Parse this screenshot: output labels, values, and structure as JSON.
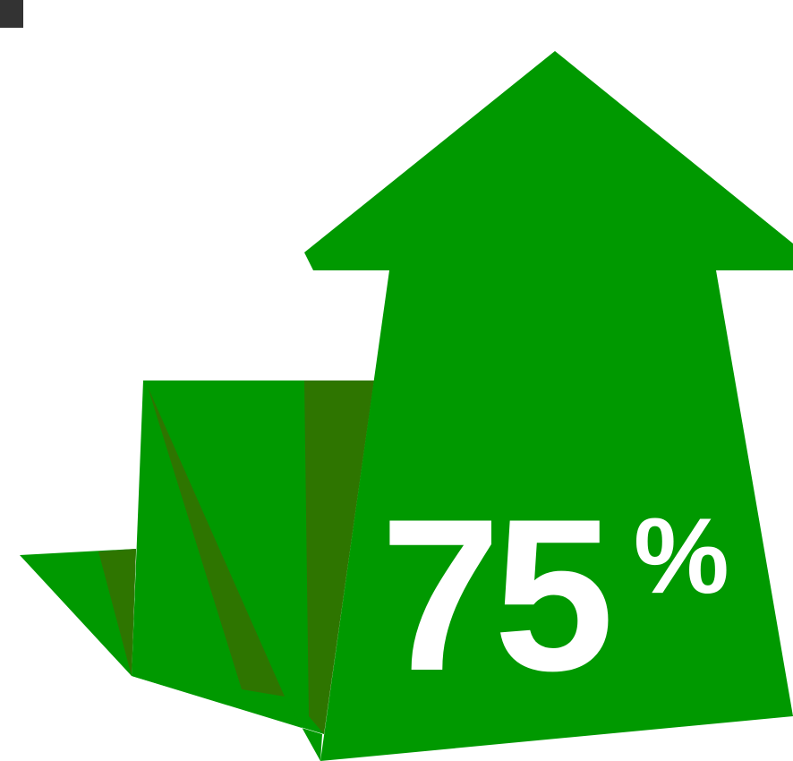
{
  "graphic": {
    "value": "75",
    "unit": "%",
    "value_fraction": 0.75,
    "icon": "up-arrow-icon",
    "colors": {
      "primary_green": "#009900",
      "shadow_green": "#2e7500",
      "text": "#ffffff",
      "corner_block": "#333333",
      "background": "#ffffff"
    }
  }
}
